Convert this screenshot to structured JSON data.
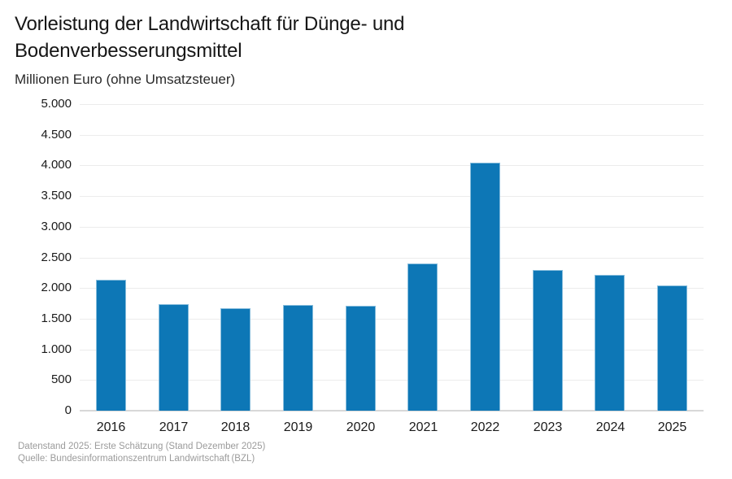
{
  "header": {
    "title_line1": "Vorleistung der Landwirtschaft für Dünge- und",
    "title_line2": "Bodenverbesserungsmittel",
    "subtitle": "Millionen Euro (ohne Umsatzsteuer)"
  },
  "chart_data": {
    "type": "bar",
    "title": "Vorleistung der Landwirtschaft für Dünge- und Bodenverbesserungsmittel",
    "subtitle": "Millionen Euro (ohne Umsatzsteuer)",
    "categories": [
      "2016",
      "2017",
      "2018",
      "2019",
      "2020",
      "2021",
      "2022",
      "2023",
      "2024",
      "2025"
    ],
    "values": [
      2130,
      1735,
      1670,
      1720,
      1715,
      2400,
      4050,
      2290,
      2215,
      2045
    ],
    "xlabel": "",
    "ylabel": "Millionen Euro (ohne Umsatzsteuer)",
    "ylim": [
      0,
      5000
    ],
    "grid": true,
    "legend": "none",
    "yticks": [
      {
        "value": 0,
        "label": "0"
      },
      {
        "value": 500,
        "label": "500"
      },
      {
        "value": 1000,
        "label": "1.000"
      },
      {
        "value": 1500,
        "label": "1.500"
      },
      {
        "value": 2000,
        "label": "2.000"
      },
      {
        "value": 2500,
        "label": "2.500"
      },
      {
        "value": 3000,
        "label": "3.000"
      },
      {
        "value": 3500,
        "label": "3.500"
      },
      {
        "value": 4000,
        "label": "4.000"
      },
      {
        "value": 4500,
        "label": "4.500"
      },
      {
        "value": 5000,
        "label": "5.000"
      }
    ]
  },
  "footer": {
    "line1": "Datenstand 2025: Erste Schätzung (Stand Dezember 2025)",
    "line2": "Quelle: Bundesinformationszentrum Landwirtschaft (BZL)"
  },
  "colors": {
    "bar": "#0d77b6",
    "bar_border": "#86bcdc",
    "grid": "#ececec",
    "axis": "#d8d8d8",
    "text": "#1a1a1a",
    "muted": "#9b9b9b"
  }
}
